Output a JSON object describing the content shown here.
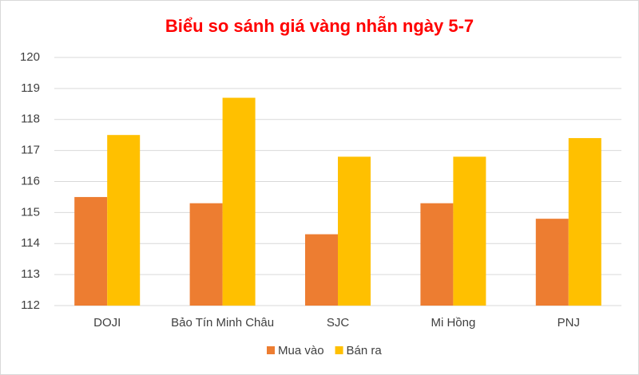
{
  "chart_data": {
    "type": "bar",
    "title": "Biểu so sánh giá vàng nhẫn ngày 5-7",
    "categories": [
      "DOJI",
      "Bảo Tín Minh Châu",
      "SJC",
      "Mi Hồng",
      "PNJ"
    ],
    "series": [
      {
        "name": "Mua vào",
        "color": "#ed7d31",
        "values": [
          115.5,
          115.3,
          114.3,
          115.3,
          114.8
        ]
      },
      {
        "name": "Bán ra",
        "color": "#ffc000",
        "values": [
          117.5,
          118.7,
          116.8,
          116.8,
          117.4
        ]
      }
    ],
    "ylim": [
      112,
      120
    ],
    "yticks": [
      112,
      113,
      114,
      115,
      116,
      117,
      118,
      119,
      120
    ],
    "grid": true,
    "legend": "bottom"
  }
}
